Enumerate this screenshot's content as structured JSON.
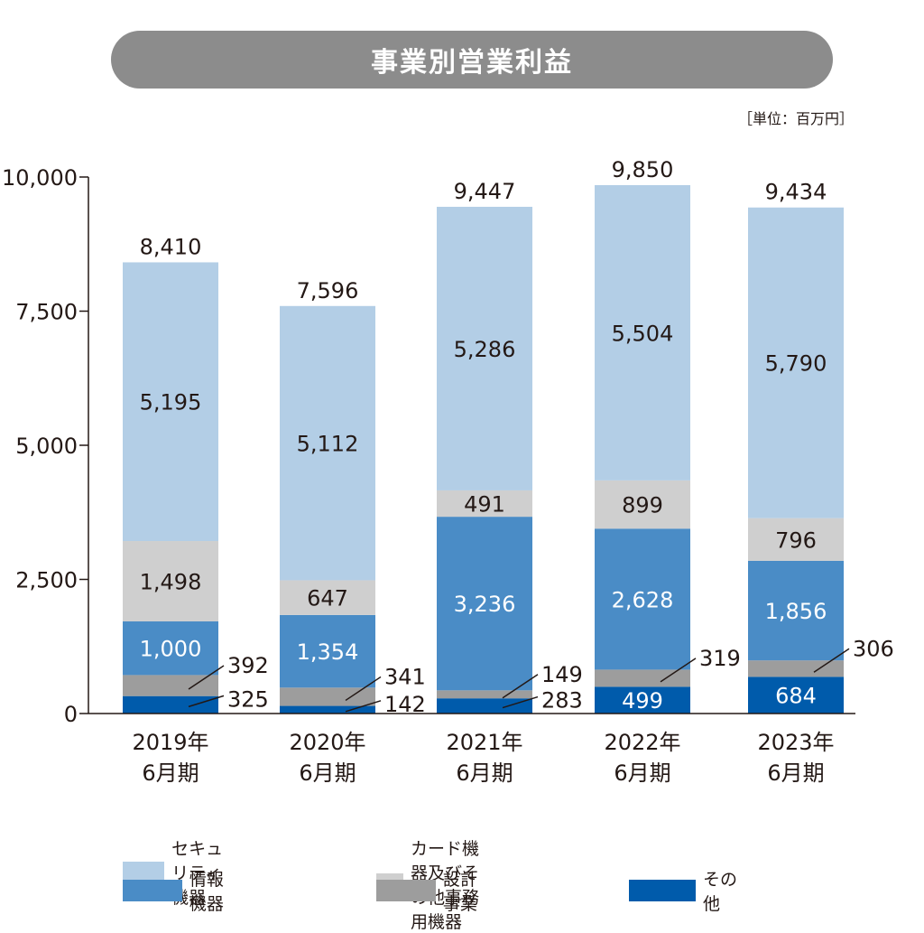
{
  "title": "事業別営業利益",
  "unit": "［単位：百万円］",
  "chart_data": {
    "type": "bar",
    "stacked": true,
    "categories": [
      {
        "year": "2019年",
        "period": "6月期"
      },
      {
        "year": "2020年",
        "period": "6月期"
      },
      {
        "year": "2021年",
        "period": "6月期"
      },
      {
        "year": "2022年",
        "period": "6月期"
      },
      {
        "year": "2023年",
        "period": "6月期"
      }
    ],
    "totals": [
      "8,410",
      "7,596",
      "9,447",
      "9,850",
      "9,434"
    ],
    "series": [
      {
        "name": "その他",
        "color": "#005bab",
        "values": [
          325,
          142,
          283,
          499,
          684
        ],
        "labels": [
          "325",
          "142",
          "283",
          "499",
          "684"
        ]
      },
      {
        "name": "設計事業",
        "color": "#9d9d9d",
        "values": [
          392,
          341,
          149,
          319,
          306
        ],
        "labels": [
          "392",
          "341",
          "149",
          "319",
          "306"
        ]
      },
      {
        "name": "情報機器",
        "color": "#4a8cc6",
        "values": [
          1000,
          1354,
          3236,
          2628,
          1856
        ],
        "labels": [
          "1,000",
          "1,354",
          "3,236",
          "2,628",
          "1,856"
        ]
      },
      {
        "name": "カード機器及びその他事務用機器",
        "color": "#cfcfcf",
        "values": [
          1498,
          647,
          491,
          899,
          796
        ],
        "labels": [
          "1,498",
          "647",
          "491",
          "899",
          "796"
        ]
      },
      {
        "name": "セキュリティ機器",
        "color": "#b3cee6",
        "values": [
          5195,
          5112,
          5286,
          5504,
          5790
        ],
        "labels": [
          "5,195",
          "5,112",
          "5,286",
          "5,504",
          "5,790"
        ]
      }
    ],
    "y_ticks": [
      {
        "value": 0,
        "label": "0"
      },
      {
        "value": 2500,
        "label": "2,500"
      },
      {
        "value": 5000,
        "label": "5,000"
      },
      {
        "value": 7500,
        "label": "7,500"
      },
      {
        "value": 10000,
        "label": "10,000"
      }
    ],
    "ylim": [
      0,
      10000
    ],
    "legend": {
      "position": "bottom",
      "order": [
        "セキュリティ機器",
        "カード機器及びその他事務用機器",
        "情報機器",
        "設計事業",
        "その他"
      ]
    }
  }
}
